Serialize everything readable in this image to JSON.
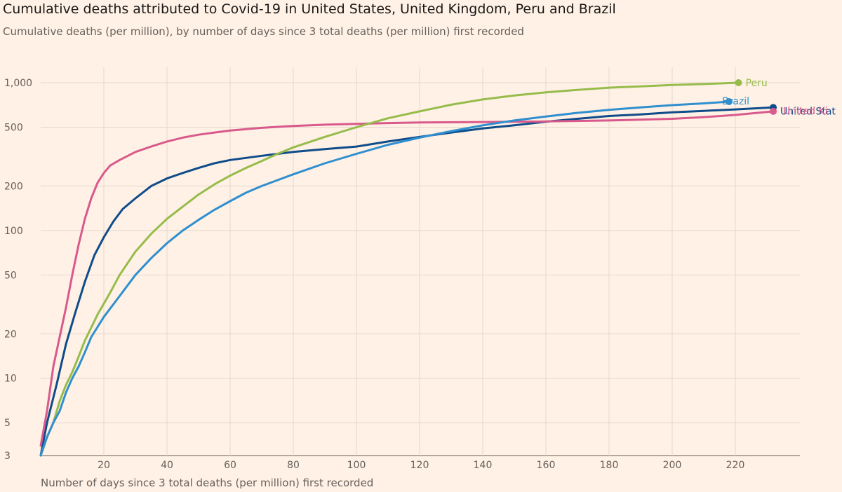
{
  "chart_data": {
    "type": "line",
    "title": "Cumulative deaths attributed to Covid-19 in United States, United Kingdom, Peru and Brazil",
    "subtitle": "Cumulative deaths (per million), by number of days since 3 total deaths (per million) first recorded",
    "xlabel": "Number of days since 3 total deaths (per million) first recorded",
    "ylabel": "",
    "yscale": "log",
    "xlim": [
      0,
      242
    ],
    "ylim": [
      3,
      1000
    ],
    "x_ticks": [
      20,
      40,
      60,
      80,
      100,
      120,
      140,
      160,
      180,
      200,
      220
    ],
    "x_tick_labels": [
      "20",
      "40",
      "60",
      "80",
      "100",
      "120",
      "140",
      "160",
      "180",
      "200",
      "220"
    ],
    "y_ticks": [
      3,
      5,
      10,
      20,
      50,
      100,
      200,
      500,
      1000
    ],
    "y_tick_labels": [
      "3",
      "5",
      "10",
      "20",
      "50",
      "100",
      "200",
      "500",
      "1,000"
    ],
    "series": [
      {
        "name": "United States",
        "label": "United Stat",
        "color": "#0f4c8a",
        "points": [
          [
            0,
            3
          ],
          [
            2,
            5
          ],
          [
            5,
            9
          ],
          [
            8,
            17
          ],
          [
            11,
            28
          ],
          [
            14,
            45
          ],
          [
            17,
            68
          ],
          [
            20,
            90
          ],
          [
            23,
            115
          ],
          [
            26,
            140
          ],
          [
            30,
            165
          ],
          [
            35,
            200
          ],
          [
            40,
            225
          ],
          [
            45,
            245
          ],
          [
            50,
            265
          ],
          [
            55,
            285
          ],
          [
            60,
            300
          ],
          [
            70,
            320
          ],
          [
            80,
            340
          ],
          [
            90,
            355
          ],
          [
            100,
            370
          ],
          [
            110,
            400
          ],
          [
            120,
            430
          ],
          [
            130,
            460
          ],
          [
            140,
            490
          ],
          [
            150,
            515
          ],
          [
            160,
            545
          ],
          [
            170,
            570
          ],
          [
            180,
            595
          ],
          [
            190,
            610
          ],
          [
            200,
            630
          ],
          [
            210,
            645
          ],
          [
            220,
            660
          ],
          [
            232,
            680
          ]
        ]
      },
      {
        "name": "United Kingdom",
        "label": "United Ki",
        "color": "#d85a8c",
        "points": [
          [
            0,
            3.5
          ],
          [
            2,
            6
          ],
          [
            4,
            12
          ],
          [
            6,
            19
          ],
          [
            8,
            30
          ],
          [
            10,
            50
          ],
          [
            12,
            80
          ],
          [
            14,
            120
          ],
          [
            16,
            165
          ],
          [
            18,
            210
          ],
          [
            20,
            245
          ],
          [
            22,
            275
          ],
          [
            25,
            300
          ],
          [
            30,
            340
          ],
          [
            35,
            370
          ],
          [
            40,
            400
          ],
          [
            45,
            425
          ],
          [
            50,
            445
          ],
          [
            55,
            460
          ],
          [
            60,
            475
          ],
          [
            70,
            495
          ],
          [
            80,
            510
          ],
          [
            90,
            520
          ],
          [
            100,
            527
          ],
          [
            110,
            533
          ],
          [
            120,
            538
          ],
          [
            140,
            542
          ],
          [
            160,
            547
          ],
          [
            180,
            555
          ],
          [
            200,
            570
          ],
          [
            210,
            585
          ],
          [
            220,
            605
          ],
          [
            232,
            640
          ]
        ]
      },
      {
        "name": "Peru",
        "label": "Peru",
        "color": "#96bc4b",
        "points": [
          [
            0,
            3
          ],
          [
            2,
            4
          ],
          [
            4,
            5
          ],
          [
            6,
            7
          ],
          [
            8,
            9
          ],
          [
            10,
            11
          ],
          [
            12,
            14
          ],
          [
            14,
            18
          ],
          [
            16,
            22
          ],
          [
            18,
            27
          ],
          [
            20,
            32
          ],
          [
            22,
            38
          ],
          [
            25,
            50
          ],
          [
            30,
            72
          ],
          [
            35,
            95
          ],
          [
            40,
            120
          ],
          [
            45,
            145
          ],
          [
            50,
            175
          ],
          [
            55,
            205
          ],
          [
            60,
            235
          ],
          [
            65,
            265
          ],
          [
            70,
            295
          ],
          [
            75,
            330
          ],
          [
            80,
            365
          ],
          [
            90,
            430
          ],
          [
            100,
            500
          ],
          [
            110,
            575
          ],
          [
            120,
            640
          ],
          [
            130,
            710
          ],
          [
            140,
            770
          ],
          [
            150,
            820
          ],
          [
            160,
            860
          ],
          [
            170,
            895
          ],
          [
            180,
            925
          ],
          [
            190,
            945
          ],
          [
            200,
            965
          ],
          [
            210,
            980
          ],
          [
            221,
            1000
          ]
        ]
      },
      {
        "name": "Brazil",
        "label": "Brazil",
        "color": "#2f8fcf",
        "points": [
          [
            0,
            3
          ],
          [
            2,
            4
          ],
          [
            4,
            5
          ],
          [
            6,
            6
          ],
          [
            8,
            8
          ],
          [
            10,
            10
          ],
          [
            12,
            12
          ],
          [
            14,
            15
          ],
          [
            16,
            19
          ],
          [
            20,
            26
          ],
          [
            25,
            36
          ],
          [
            30,
            50
          ],
          [
            35,
            65
          ],
          [
            40,
            82
          ],
          [
            45,
            100
          ],
          [
            50,
            118
          ],
          [
            55,
            138
          ],
          [
            60,
            158
          ],
          [
            65,
            180
          ],
          [
            70,
            200
          ],
          [
            80,
            240
          ],
          [
            90,
            285
          ],
          [
            100,
            330
          ],
          [
            110,
            380
          ],
          [
            120,
            425
          ],
          [
            130,
            470
          ],
          [
            140,
            515
          ],
          [
            150,
            555
          ],
          [
            160,
            590
          ],
          [
            170,
            625
          ],
          [
            180,
            655
          ],
          [
            190,
            680
          ],
          [
            200,
            705
          ],
          [
            210,
            725
          ],
          [
            218,
            745
          ]
        ]
      }
    ]
  }
}
